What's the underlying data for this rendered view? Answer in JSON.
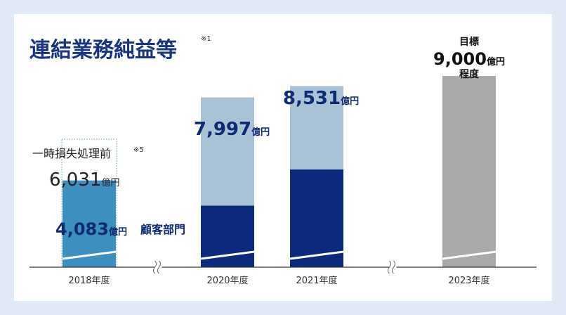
{
  "chart_data": {
    "type": "bar",
    "title": "連結業務純益等",
    "title_note": "※1",
    "categories": [
      "2018年度",
      "2020年度",
      "2021年度",
      "2023年度"
    ],
    "series": [
      {
        "name": "顧客部門",
        "values": [
          null,
          2900,
          4600,
          null
        ]
      },
      {
        "values": [
          4083,
          5097,
          3931,
          null
        ]
      },
      {
        "values": [
          null,
          null,
          null,
          9000
        ]
      }
    ],
    "totals": [
      4083,
      7997,
      8531,
      9000
    ],
    "total_labels": [
      "4,083",
      "7,997",
      "8,531",
      "9,000"
    ],
    "unit": "億円",
    "pre_loss": {
      "label": "一時損失処理前",
      "note": "※5",
      "value": 6031,
      "value_label": "6,031"
    },
    "target": {
      "prefix": "目標",
      "suffix": "程度"
    },
    "ylim": [
      0,
      9600
    ],
    "axis_break_between": [
      [
        0,
        1
      ],
      [
        2,
        3
      ]
    ],
    "colors": {
      "customer": "#0b2a7c",
      "other": "#a9c2d6",
      "y2018": "#3d8fbf",
      "target": "#a8a9aa",
      "label": "#0f2b74",
      "axis": "#333333"
    }
  }
}
